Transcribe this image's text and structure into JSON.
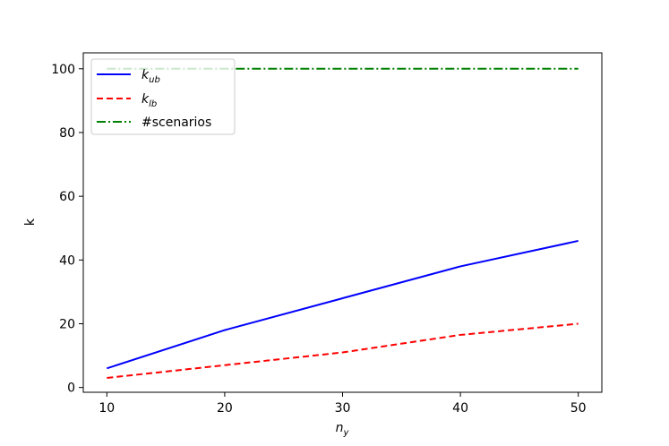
{
  "chart_data": {
    "type": "line",
    "x": [
      10,
      20,
      30,
      40,
      50
    ],
    "xlabel_base": "n",
    "xlabel_sub": "y",
    "ylabel": "k",
    "xlim": [
      8,
      52
    ],
    "ylim": [
      -1.5,
      105
    ],
    "xticks": [
      10,
      20,
      30,
      40,
      50
    ],
    "yticks": [
      0,
      20,
      40,
      60,
      80,
      100
    ],
    "grid": false,
    "legend_position": "top-left",
    "series": [
      {
        "name_base": "k",
        "name_sub": "ub",
        "values": [
          6,
          18,
          28,
          38,
          46
        ],
        "color": "#0000ff",
        "style": "solid"
      },
      {
        "name_base": "k",
        "name_sub": "lb",
        "values": [
          3,
          7,
          11,
          16.5,
          20
        ],
        "color": "#ff0000",
        "style": "dashed"
      },
      {
        "name": "#scenarios",
        "values": [
          100,
          100,
          100,
          100,
          100
        ],
        "color": "#008000",
        "style": "dashdot"
      }
    ]
  }
}
